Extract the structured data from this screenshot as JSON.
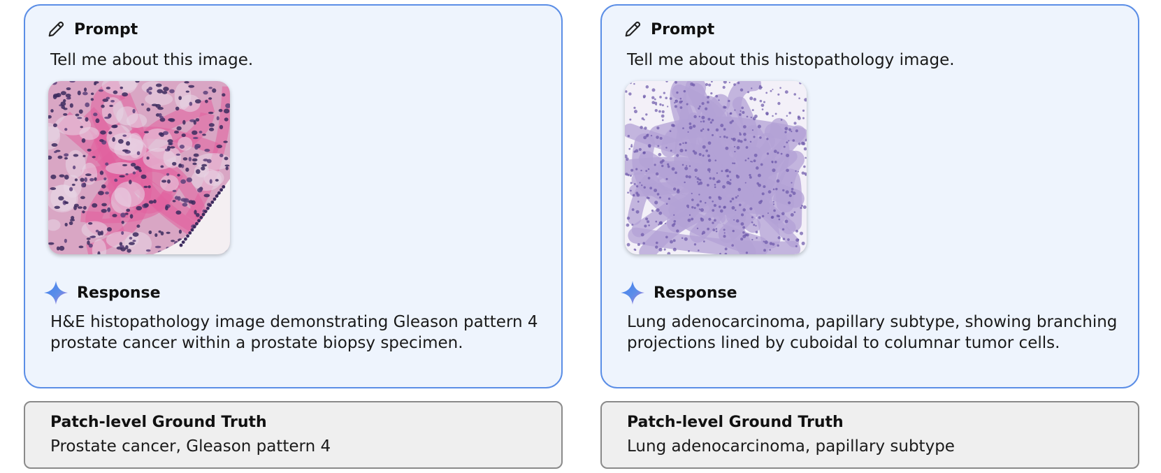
{
  "panels": [
    {
      "prompt_label": "Prompt",
      "prompt_text": "Tell me about this image.",
      "image_icon": "prostate-histology-image",
      "response_label": "Response",
      "response_text": "H&E histopathology image demonstrating Gleason pattern 4 prostate cancer within a prostate biopsy specimen.",
      "ground_truth_label": "Patch-level Ground Truth",
      "ground_truth_value": "Prostate cancer, Gleason pattern 4"
    },
    {
      "prompt_label": "Prompt",
      "prompt_text": "Tell me about this histopathology image.",
      "image_icon": "lung-histology-image",
      "response_label": "Response",
      "response_text": "Lung adenocarcinoma, papillary subtype, showing branching projections lined by cuboidal to columnar tumor cells.",
      "ground_truth_label": "Patch-level Ground Truth",
      "ground_truth_value": "Lung adenocarcinoma, papillary subtype"
    }
  ],
  "colors": {
    "card_border": "#5b8ee6",
    "card_bg": "#eef4fd",
    "gt_border": "#8a8a8a",
    "gt_bg": "#efefef",
    "spark_gradient_start": "#4a7fe8",
    "spark_gradient_end": "#a97be0"
  }
}
